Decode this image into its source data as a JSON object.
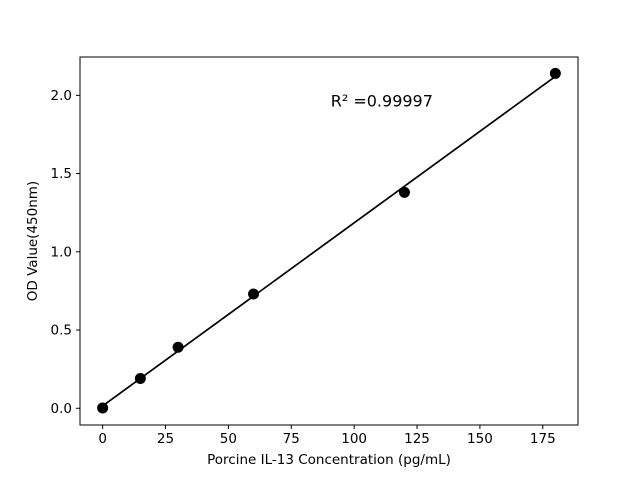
{
  "figure": {
    "background": "#ffffff"
  },
  "chart_data": {
    "type": "scatter",
    "title": "",
    "xlabel": "Porcine IL-13 Concentration (pg/mL)",
    "ylabel": "OD Value(450nm)",
    "annotation": {
      "text": "R² =0.99997",
      "x": 111,
      "y": 1.93
    },
    "x": [
      0,
      15,
      30,
      60,
      120,
      180
    ],
    "y": [
      0.002,
      0.19,
      0.39,
      0.73,
      1.38,
      2.14
    ],
    "fit_line": {
      "slope": 0.0117,
      "intercept": 0.015,
      "x_start": 0,
      "x_end": 180,
      "r_squared": 0.99997
    },
    "x_ticks": [
      {
        "value": 0,
        "label": "0"
      },
      {
        "value": 25,
        "label": "25"
      },
      {
        "value": 50,
        "label": "50"
      },
      {
        "value": 75,
        "label": "75"
      },
      {
        "value": 100,
        "label": "100"
      },
      {
        "value": 125,
        "label": "125"
      },
      {
        "value": 150,
        "label": "150"
      },
      {
        "value": 175,
        "label": "175"
      }
    ],
    "y_ticks": [
      {
        "value": 0.0,
        "label": "0.0"
      },
      {
        "value": 0.5,
        "label": "0.5"
      },
      {
        "value": 1.0,
        "label": "1.0"
      },
      {
        "value": 1.5,
        "label": "1.5"
      },
      {
        "value": 2.0,
        "label": "2.0"
      }
    ],
    "xlim": [
      -9,
      189
    ],
    "ylim": [
      -0.107,
      2.245
    ],
    "grid": false,
    "legend": null,
    "marker_color": "#000000",
    "line_color": "#000000",
    "axis_color": "#000000"
  }
}
